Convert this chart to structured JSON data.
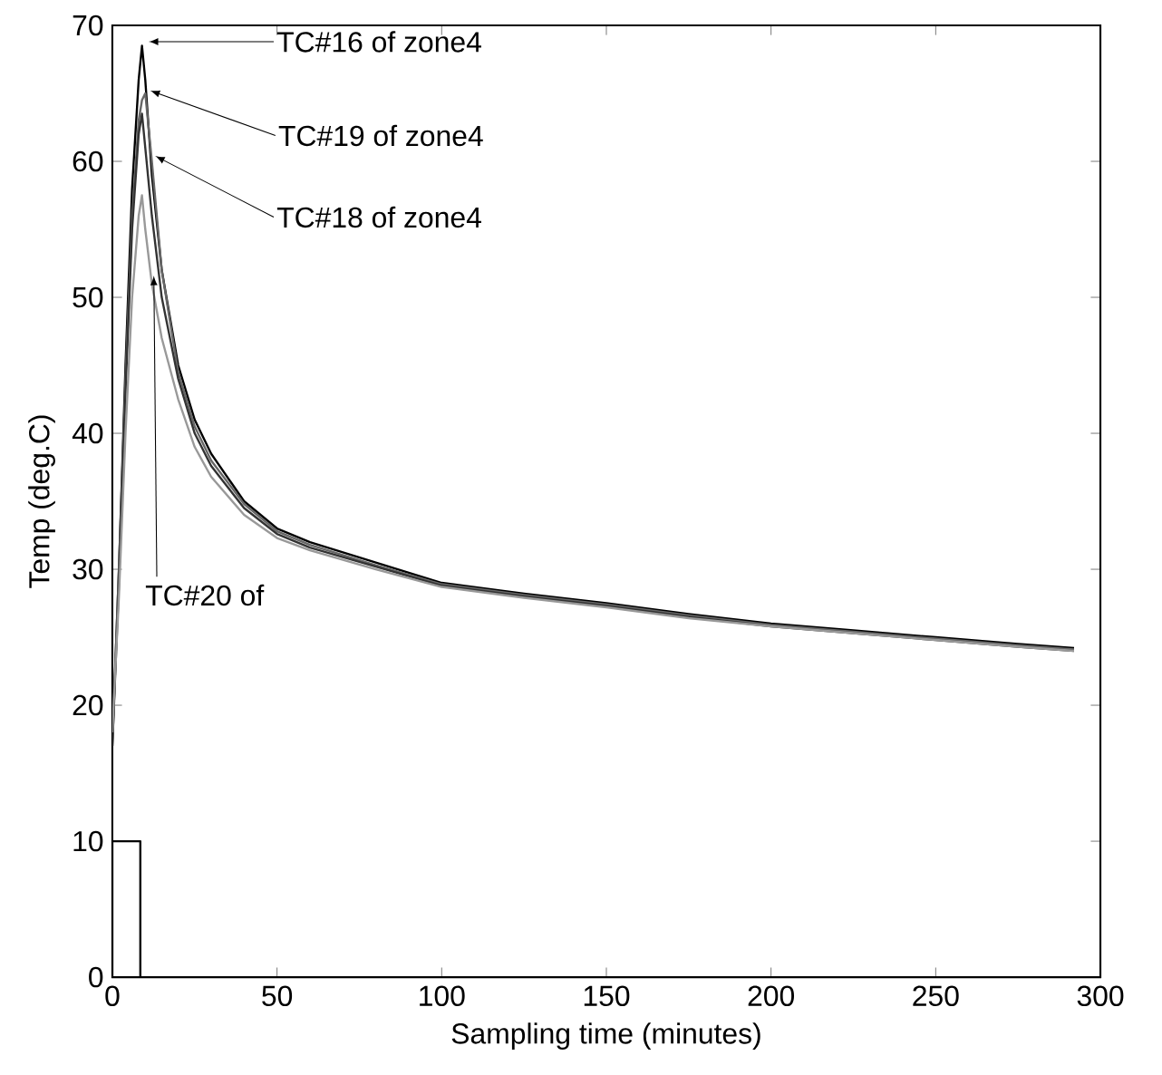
{
  "chart_data": {
    "type": "line",
    "xlabel": "Sampling time (minutes)",
    "ylabel": "Temp (deg.C)",
    "xlim": [
      0,
      300
    ],
    "ylim": [
      0,
      70
    ],
    "xticks": [
      0,
      50,
      100,
      150,
      200,
      250,
      300
    ],
    "yticks": [
      0,
      10,
      20,
      30,
      40,
      50,
      60,
      70
    ],
    "series": [
      {
        "color": "#000000",
        "x": [
          0,
          2,
          4,
          6,
          8,
          9,
          10,
          12,
          15,
          20,
          25,
          30,
          40,
          50,
          60,
          80,
          100,
          125,
          150,
          175,
          200,
          225,
          250,
          275,
          292
        ],
        "values": [
          17,
          30,
          45,
          58,
          66,
          68.5,
          66,
          59,
          52,
          45,
          41,
          38.5,
          35,
          33,
          32,
          30.5,
          29,
          28.2,
          27.5,
          26.7,
          26,
          25.5,
          25,
          24.5,
          24.2
        ]
      },
      {
        "color": "#666666",
        "x": [
          0,
          2,
          4,
          6,
          8,
          9,
          10,
          12,
          15,
          20,
          25,
          30,
          40,
          50,
          60,
          80,
          100,
          125,
          150,
          175,
          200,
          225,
          250,
          275,
          292
        ],
        "values": [
          17.5,
          30,
          44,
          56,
          63,
          64.5,
          65,
          60,
          52,
          44.5,
          40.5,
          38,
          34.8,
          32.8,
          31.8,
          30.3,
          28.9,
          28.1,
          27.4,
          26.6,
          25.9,
          25.4,
          24.9,
          24.4,
          24.1
        ]
      },
      {
        "color": "#333333",
        "x": [
          0,
          2,
          4,
          6,
          8,
          9,
          10,
          12,
          15,
          20,
          25,
          30,
          40,
          50,
          60,
          80,
          100,
          125,
          150,
          175,
          200,
          225,
          250,
          275,
          292
        ],
        "values": [
          17,
          29,
          43,
          55,
          62,
          63.5,
          61,
          56,
          50,
          44,
          40,
          37.6,
          34.5,
          32.6,
          31.6,
          30.2,
          28.8,
          28,
          27.3,
          26.5,
          25.8,
          25.3,
          24.8,
          24.3,
          24
        ]
      },
      {
        "color": "#999999",
        "x": [
          0,
          2,
          4,
          6,
          8,
          9,
          10,
          12,
          15,
          20,
          25,
          30,
          40,
          50,
          60,
          80,
          100,
          125,
          150,
          175,
          200,
          225,
          250,
          275,
          292
        ],
        "values": [
          18,
          28,
          40,
          50,
          56,
          57.5,
          55,
          51,
          47,
          42.5,
          39,
          36.8,
          34,
          32.3,
          31.4,
          30,
          28.7,
          27.9,
          27.2,
          26.4,
          25.8,
          25.3,
          24.8,
          24.3,
          24
        ]
      },
      {
        "color": "#000000",
        "x": [
          0,
          0,
          8.5,
          8.5
        ],
        "values": [
          0,
          10,
          10,
          0
        ]
      }
    ],
    "annotations": [
      {
        "text": "TC#16 of zone4",
        "x": 11,
        "y": 68.8
      },
      {
        "text": "TC#19 of zone4",
        "x": 11.5,
        "y": 65.2
      },
      {
        "text": "TC#18 of zone4",
        "x": 13,
        "y": 60.4
      },
      {
        "text": "TC#20 of",
        "x": 12.6,
        "y": 51.6
      }
    ]
  }
}
